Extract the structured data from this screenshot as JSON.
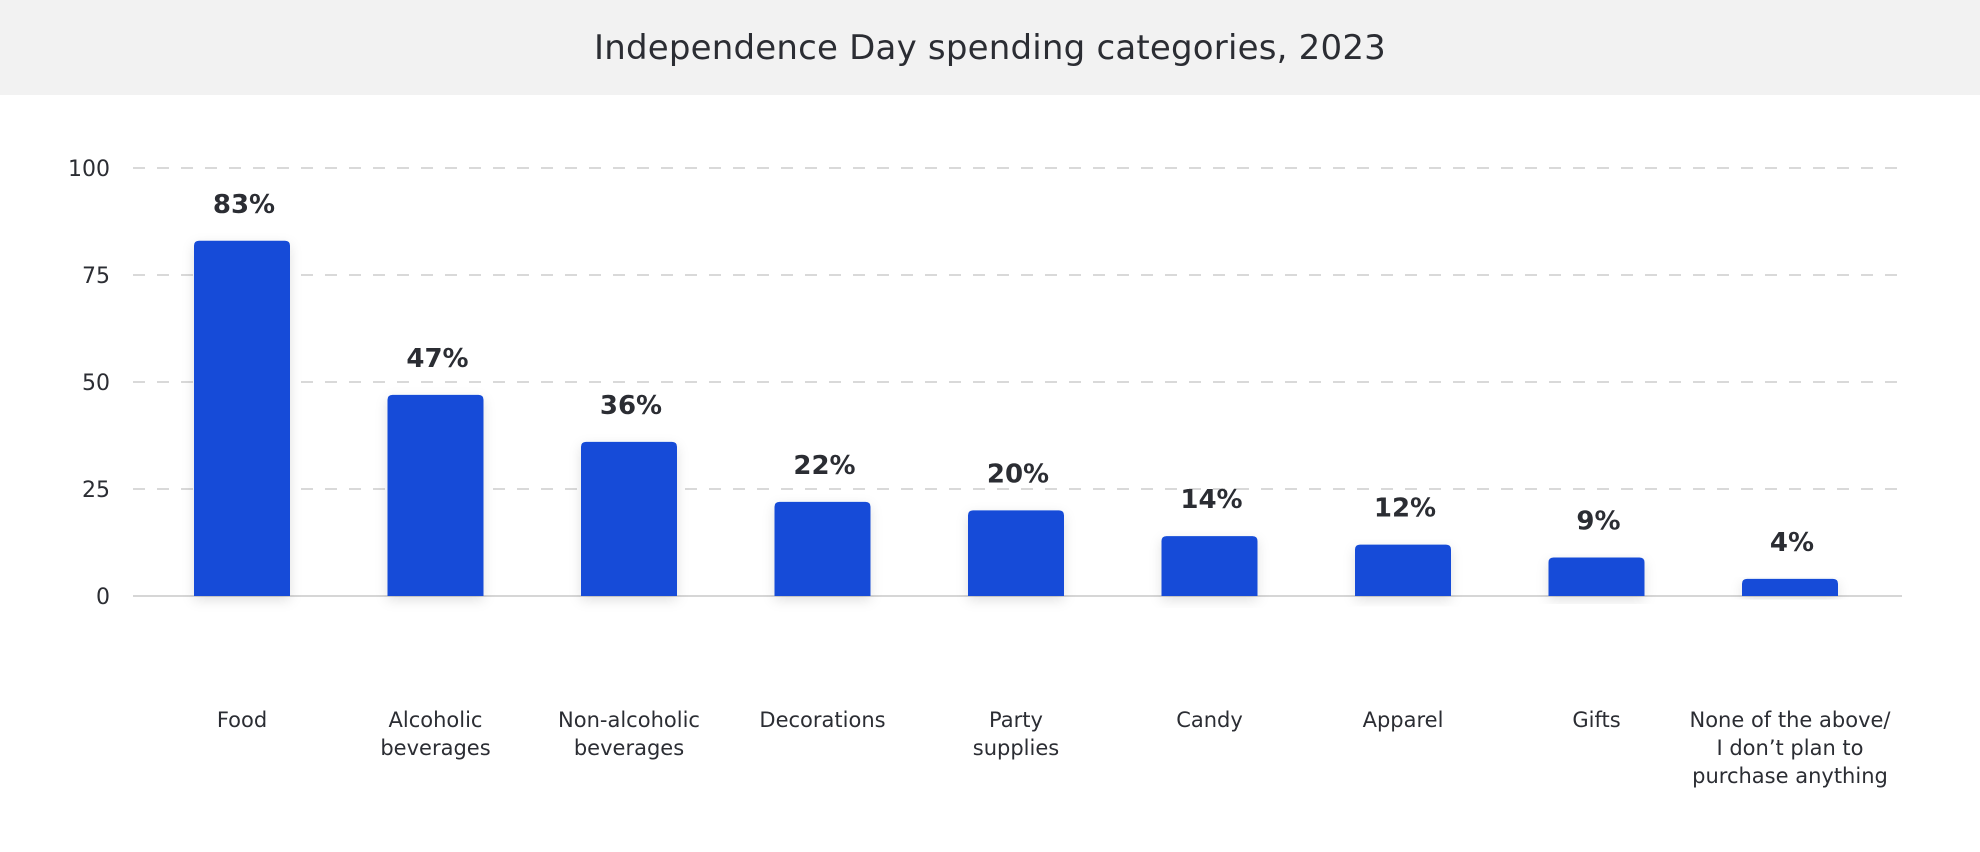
{
  "chart_data": {
    "type": "bar",
    "title": "Independence Day spending categories, 2023",
    "xlabel": "",
    "ylabel": "",
    "ylim": [
      0,
      100
    ],
    "yticks": [
      0,
      25,
      50,
      75,
      100
    ],
    "grid": true,
    "categories": [
      [
        "Food"
      ],
      [
        "Alcoholic",
        "beverages"
      ],
      [
        "Non-alcoholic",
        "beverages"
      ],
      [
        "Decorations"
      ],
      [
        "Party",
        "supplies"
      ],
      [
        "Candy"
      ],
      [
        "Apparel"
      ],
      [
        "Gifts"
      ],
      [
        "None of the above/",
        "I don’t plan to",
        "purchase anything"
      ]
    ],
    "values": [
      83,
      47,
      36,
      22,
      20,
      14,
      12,
      9,
      4
    ],
    "data_labels": [
      "83%",
      "47%",
      "36%",
      "22%",
      "20%",
      "14%",
      "12%",
      "9%",
      "4%"
    ],
    "bar_color": "#144cd8"
  }
}
